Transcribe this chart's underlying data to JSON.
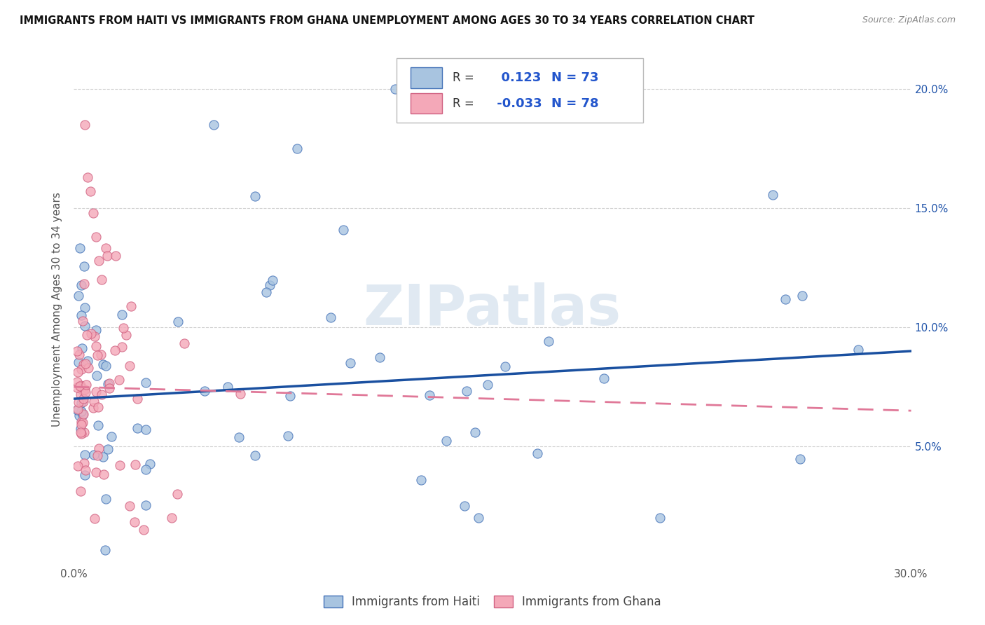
{
  "title": "IMMIGRANTS FROM HAITI VS IMMIGRANTS FROM GHANA UNEMPLOYMENT AMONG AGES 30 TO 34 YEARS CORRELATION CHART",
  "source": "Source: ZipAtlas.com",
  "ylabel": "Unemployment Among Ages 30 to 34 years",
  "xlim": [
    0.0,
    0.3
  ],
  "ylim": [
    0.0,
    0.215
  ],
  "x_ticks": [
    0.0,
    0.05,
    0.1,
    0.15,
    0.2,
    0.25,
    0.3
  ],
  "x_tick_labels": [
    "0.0%",
    "",
    "",
    "",
    "",
    "",
    "30.0%"
  ],
  "y_ticks": [
    0.05,
    0.1,
    0.15,
    0.2
  ],
  "y_tick_labels_right": [
    "5.0%",
    "10.0%",
    "15.0%",
    "20.0%"
  ],
  "haiti_color": "#a8c4e0",
  "ghana_color": "#f4a8b8",
  "haiti_edge_color": "#4472b8",
  "ghana_edge_color": "#d06080",
  "haiti_line_color": "#1a50a0",
  "ghana_line_color": "#e07898",
  "r_haiti": 0.123,
  "n_haiti": 73,
  "r_ghana": -0.033,
  "n_ghana": 78,
  "watermark": "ZIPatlas",
  "legend_label_haiti": "Immigrants from Haiti",
  "legend_label_ghana": "Immigrants from Ghana",
  "text_color_nums": "#2255cc",
  "text_color_label": "#333333",
  "haiti_line_start_y": 0.07,
  "haiti_line_end_y": 0.09,
  "ghana_line_start_y": 0.075,
  "ghana_line_end_y": 0.065
}
